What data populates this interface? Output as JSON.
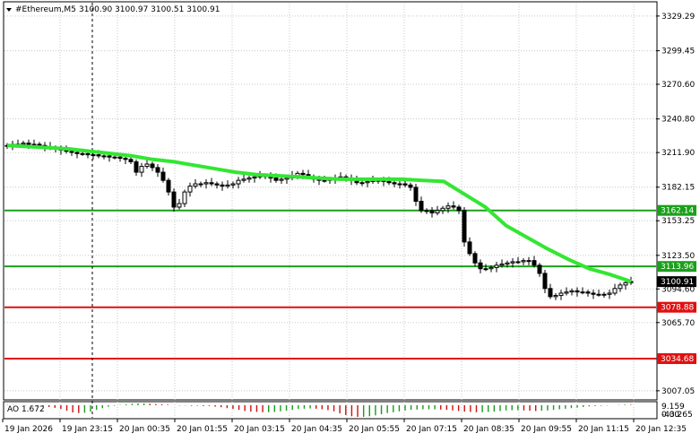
{
  "header": {
    "symbol_label": "#Ethereum,M5",
    "ohlc": "3100.90 3100.97 3100.51 3100.91"
  },
  "price_axis": {
    "ticks": [
      "3329.29",
      "3299.45",
      "3270.60",
      "3240.80",
      "3211.90",
      "3182.15",
      "3153.25",
      "3123.50",
      "3094.60",
      "3065.70",
      "3034.68",
      "3007.05"
    ]
  },
  "levels": [
    {
      "name": "level-3162",
      "label": "3162.14",
      "value": 3162.14,
      "color": "#1aa01a"
    },
    {
      "name": "level-3113",
      "label": "3113.96",
      "value": 3113.96,
      "color": "#1aa01a"
    },
    {
      "name": "level-3078",
      "label": "3078.88",
      "value": 3078.88,
      "color": "#e01010"
    },
    {
      "name": "level-3034",
      "label": "3034.68",
      "value": 3034.68,
      "color": "#e01010"
    }
  ],
  "current_price": {
    "label": "3100.91",
    "value": 3100.91
  },
  "time_axis": {
    "labels": [
      "19 Jan 2026",
      "19 Jan 23:15",
      "20 Jan 00:35",
      "20 Jan 01:55",
      "20 Jan 03:15",
      "20 Jan 04:35",
      "20 Jan 05:55",
      "20 Jan 07:15",
      "20 Jan 08:35",
      "20 Jan 09:55",
      "20 Jan 11:15",
      "20 Jan 12:35"
    ]
  },
  "indicator": {
    "label": "AO 1.672",
    "top_label": "9.159",
    "zero_label": "0.00",
    "bottom_label": "-43.265"
  },
  "colors": {
    "background": "#ffffff",
    "grid": "#c8c8c8",
    "candle": "#000000",
    "ma_line": "#33e633",
    "ao_up": "#1a9a1a",
    "ao_down": "#cc1010",
    "price_tag": "#000000"
  },
  "chart_data": {
    "type": "candlestick",
    "ylim": [
      3000,
      3340
    ],
    "xlim": [
      0,
      117
    ],
    "close": [
      3218,
      3219,
      3219,
      3220,
      3219,
      3219,
      3218,
      3217,
      3216,
      3215,
      3214,
      3213,
      3212,
      3211,
      3211,
      3210,
      3210,
      3209,
      3209,
      3208,
      3208,
      3207,
      3206,
      3204,
      3195,
      3200,
      3202,
      3199,
      3195,
      3188,
      3178,
      3165,
      3168,
      3178,
      3183,
      3185,
      3185,
      3186,
      3185,
      3184,
      3183,
      3184,
      3185,
      3188,
      3189,
      3190,
      3191,
      3192,
      3192,
      3190,
      3188,
      3189,
      3190,
      3192,
      3194,
      3193,
      3191,
      3189,
      3188,
      3188,
      3189,
      3190,
      3191,
      3190,
      3188,
      3186,
      3186,
      3187,
      3188,
      3188,
      3187,
      3186,
      3185,
      3185,
      3184,
      3182,
      3170,
      3162,
      3162,
      3160,
      3162,
      3164,
      3166,
      3165,
      3162,
      3135,
      3125,
      3117,
      3112,
      3112,
      3113,
      3115,
      3116,
      3117,
      3118,
      3118,
      3119,
      3119,
      3115,
      3108,
      3095,
      3088,
      3089,
      3091,
      3092,
      3093,
      3092,
      3092,
      3091,
      3090,
      3090,
      3090,
      3091,
      3095,
      3098,
      3100,
      3101
    ],
    "ma": [
      3218,
      3217,
      3216,
      3215,
      3213,
      3211,
      3209,
      3206,
      3204,
      3201,
      3198,
      3195,
      3193,
      3192,
      3191,
      3190,
      3189,
      3189,
      3189,
      3189,
      3188,
      3187,
      3176,
      3165,
      3149,
      3139,
      3129,
      3120,
      3112,
      3107,
      3101
    ],
    "ao_lim": [
      -43.265,
      9.159
    ],
    "ao": [
      1,
      1,
      0,
      -1,
      -2,
      -3,
      -4,
      -6,
      -9,
      -13,
      -19,
      -25,
      -27,
      -26,
      -22,
      -16,
      -10,
      -5,
      -2,
      1,
      3,
      5,
      6,
      6,
      5,
      4,
      3,
      2,
      0,
      -1,
      -1,
      -2,
      -2,
      -3,
      -3,
      -5,
      -7,
      -10,
      -13,
      -16,
      -20,
      -22,
      -23,
      -24,
      -24,
      -23,
      -21,
      -19,
      -16,
      -13,
      -12,
      -11,
      -12,
      -14,
      -17,
      -21,
      -28,
      -34,
      -38,
      -40,
      -40,
      -38,
      -35,
      -31,
      -27,
      -24,
      -21,
      -18,
      -16,
      -15,
      -14,
      -14,
      -14,
      -15,
      -16,
      -18,
      -20,
      -22,
      -23,
      -24,
      -24,
      -23,
      -22,
      -20,
      -18,
      -17,
      -17,
      -18,
      -19,
      -20,
      -19,
      -18,
      -16,
      -14,
      -12,
      -10,
      -8,
      -6,
      -4,
      -3,
      -2,
      -1,
      0,
      1,
      2,
      1.672
    ]
  }
}
